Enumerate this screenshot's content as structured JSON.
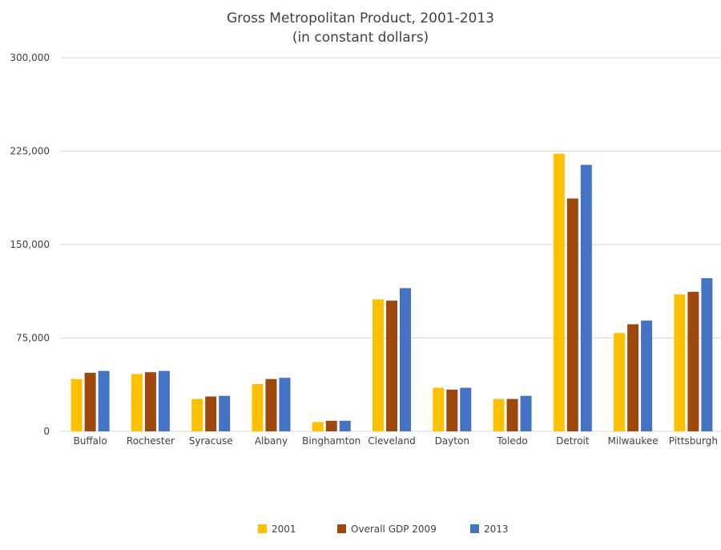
{
  "chart_data": {
    "type": "bar",
    "title": "Gross Metropolitan Product, 2001-2013",
    "subtitle": "(in constant dollars)",
    "xlabel": "",
    "ylabel": "",
    "ylim": [
      0,
      300000
    ],
    "yticks": [
      0,
      75000,
      150000,
      225000,
      300000
    ],
    "ytick_labels": [
      "0",
      "75,000",
      "150,000",
      "225,000",
      "300,000"
    ],
    "grid": true,
    "legend_position": "bottom",
    "categories": [
      "Buffalo",
      "Rochester",
      "Syracuse",
      "Albany",
      "Binghamton",
      "Cleveland",
      "Dayton",
      "Toledo",
      "Detroit",
      "Milwaukee",
      "Pittsburgh"
    ],
    "series": [
      {
        "name": "2001",
        "color": "#FFC000",
        "values": [
          42000,
          46000,
          26000,
          38000,
          7500,
          106000,
          35000,
          26000,
          223000,
          79000,
          110000
        ]
      },
      {
        "name": "Overall GDP 2009",
        "color": "#9E480E",
        "values": [
          47000,
          47500,
          28000,
          42000,
          8500,
          105000,
          33500,
          26000,
          187000,
          86000,
          112000
        ]
      },
      {
        "name": "2013",
        "color": "#4472C4",
        "values": [
          48500,
          48500,
          28500,
          43000,
          8500,
          115000,
          35000,
          28500,
          214000,
          89000,
          123000
        ]
      }
    ]
  }
}
